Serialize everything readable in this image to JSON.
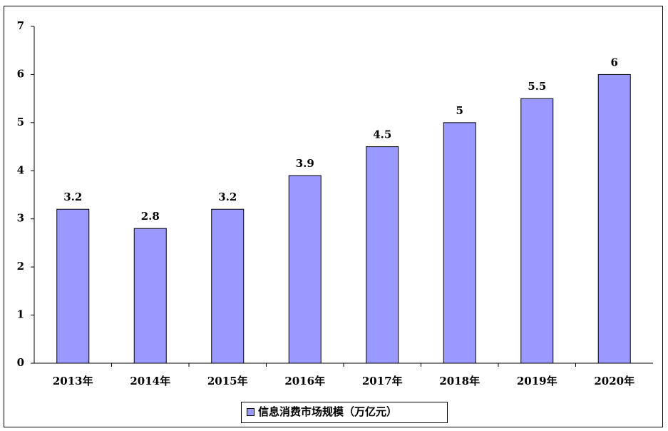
{
  "chart_data": {
    "type": "bar",
    "categories": [
      "2013年",
      "2014年",
      "2015年",
      "2016年",
      "2017年",
      "2018年",
      "2019年",
      "2020年"
    ],
    "series": [
      {
        "name": "信息消费市场规模（万亿元）",
        "color": "#9999ff",
        "values": [
          3.2,
          2.8,
          3.2,
          3.9,
          4.5,
          5,
          5.5,
          6
        ]
      }
    ],
    "ylim": [
      0,
      7
    ],
    "yticks": [
      0,
      1,
      2,
      3,
      4,
      5,
      6,
      7
    ],
    "grid": false,
    "legend": "bottom"
  }
}
